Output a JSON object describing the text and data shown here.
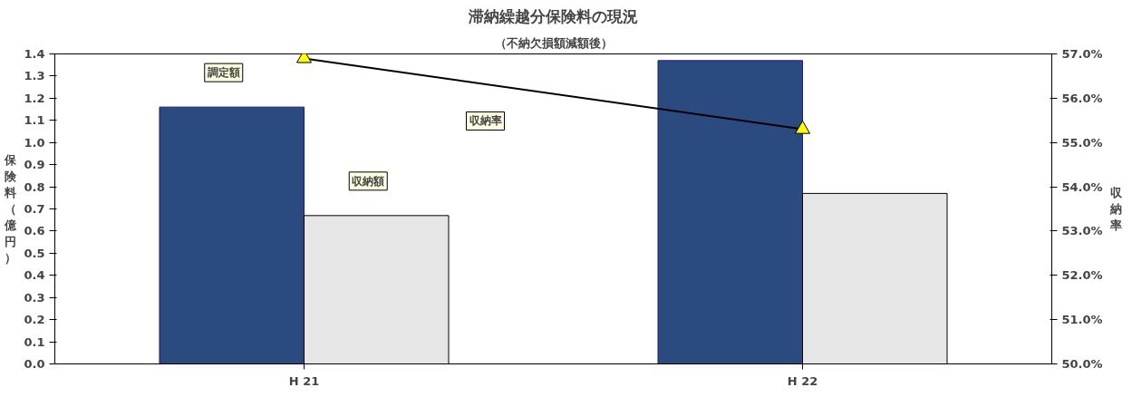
{
  "chart_data": {
    "type": "bar",
    "title": "滞納繰越分保険料の現況",
    "subtitle": "（不納欠損額減額後）",
    "ylabel": "保険料（億円）",
    "y2label": "収納率",
    "categories": [
      "H 21",
      "H 22"
    ],
    "series": [
      {
        "name": "調定額",
        "color": "#2b4a80",
        "values": [
          1.16,
          1.37
        ]
      },
      {
        "name": "収納額",
        "color": "#e6e6e6",
        "values": [
          0.67,
          0.77
        ]
      },
      {
        "name": "収納率",
        "type": "line",
        "axis": "y2",
        "color": "#000000",
        "marker": "triangle",
        "values": [
          56.9,
          55.3
        ]
      }
    ],
    "ylim": [
      0,
      1.4
    ],
    "yticks": [
      {
        "value": 0,
        "label": "0.0"
      },
      0.1,
      0.2,
      0.3,
      0.4,
      0.5,
      0.6,
      0.7,
      0.8,
      0.9,
      {
        "value": 1,
        "label": "1.0"
      },
      1.1,
      1.2,
      1.3,
      1.4
    ],
    "y2lim": [
      50,
      57
    ],
    "y2ticks": [
      {
        "value": 50,
        "label": "50.0%"
      },
      {
        "value": 51,
        "label": "51.0%"
      },
      {
        "value": 52,
        "label": "52.0%"
      },
      {
        "value": 53,
        "label": "53.0%"
      },
      {
        "value": 54,
        "label": "54.0%"
      },
      {
        "value": 55,
        "label": "55.0%"
      },
      {
        "value": 56,
        "label": "56.0%"
      },
      {
        "value": 57,
        "label": "57.0%"
      }
    ],
    "grid": false
  }
}
